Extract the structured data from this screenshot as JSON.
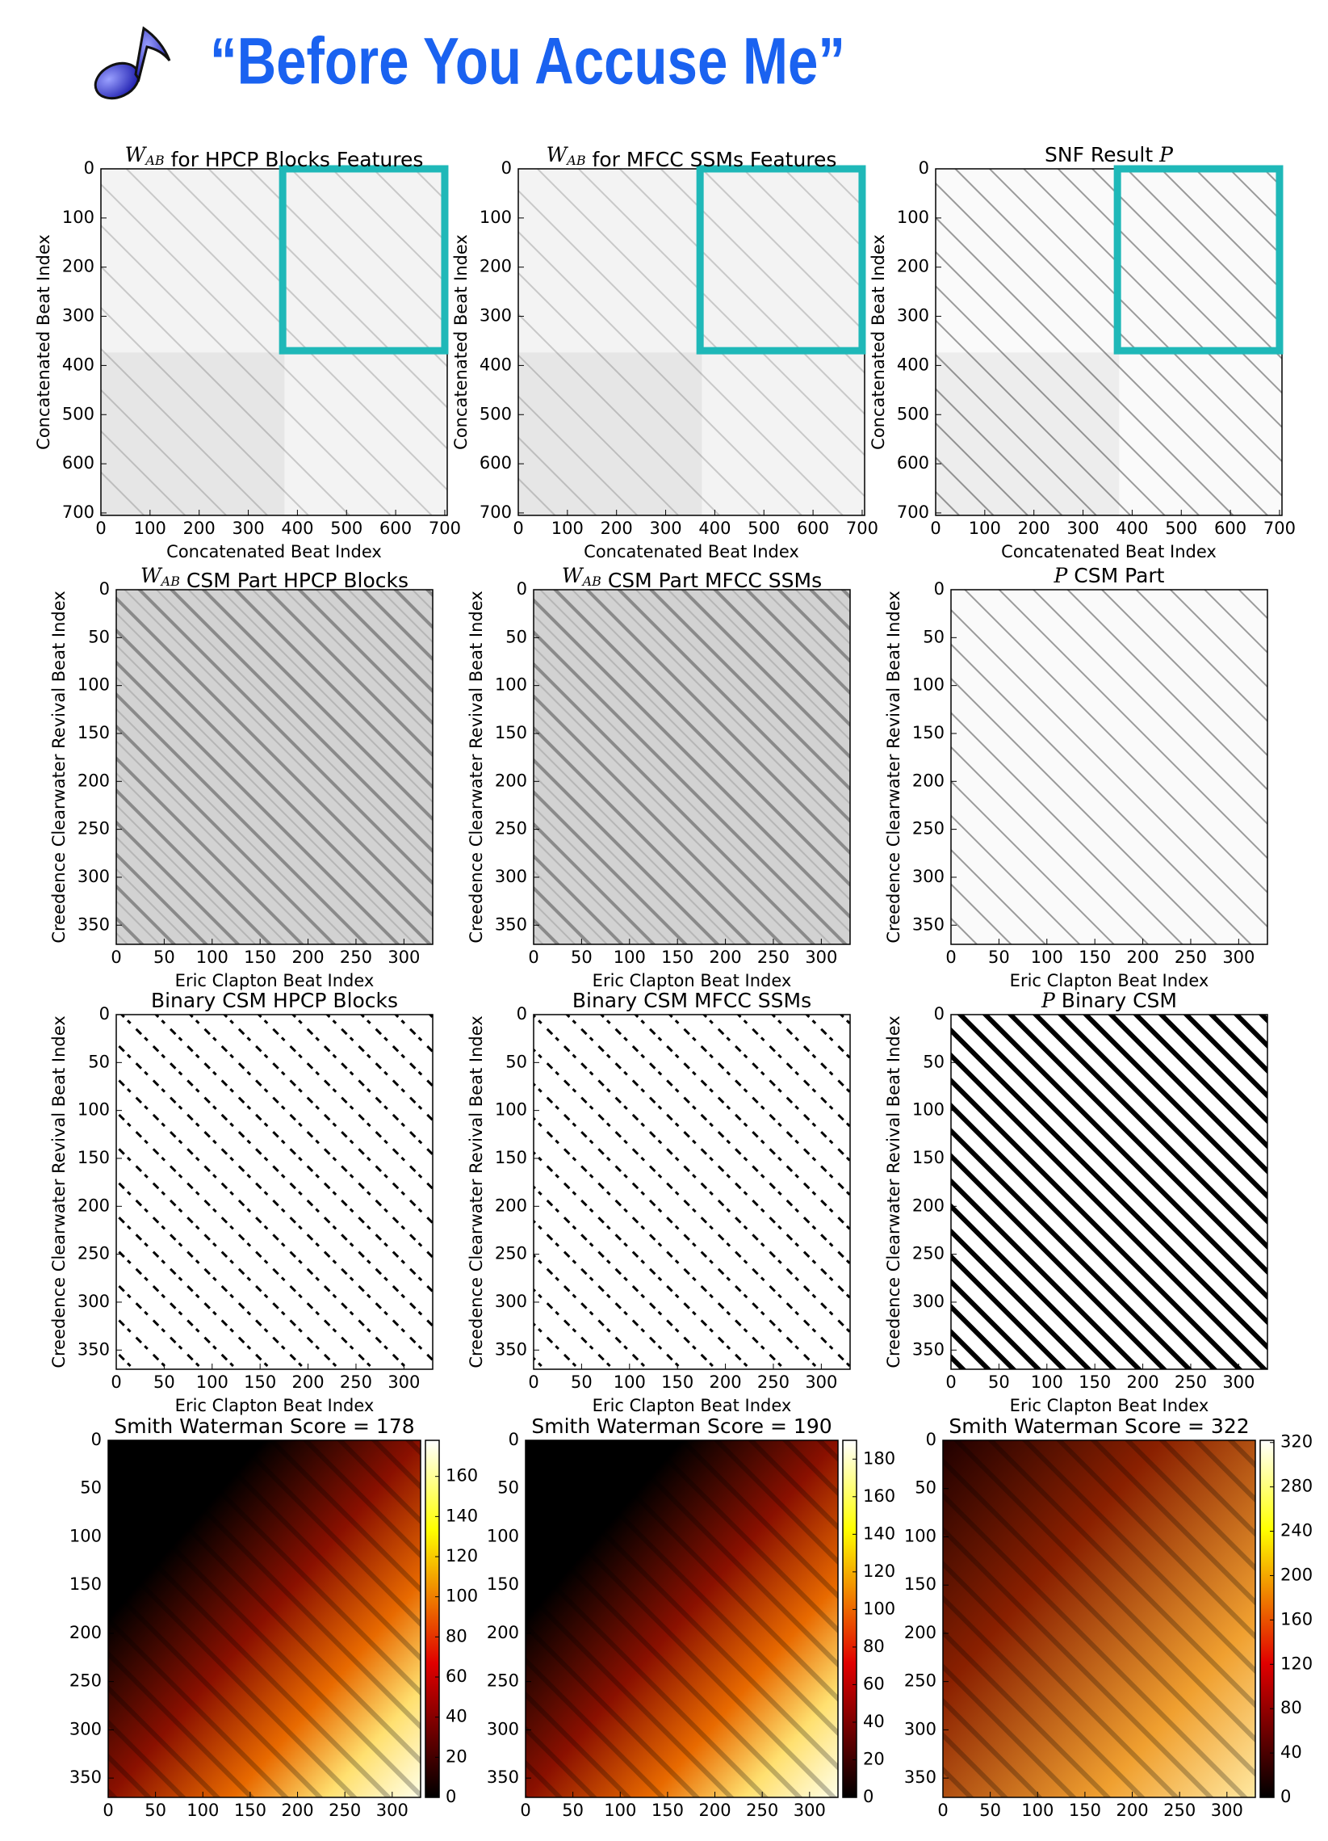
{
  "header": {
    "title": "“Before You Accuse Me”"
  },
  "chart_data": [
    {
      "type": "heatmap",
      "colormap": "gray",
      "title_parts": [
        {
          "text": "W",
          "math": true,
          "sub": "AB"
        },
        {
          "text": " for HPCP Blocks Features",
          "math": false
        }
      ],
      "xlabel": "Concatenated Beat Index",
      "ylabel": "Concatenated Beat Index",
      "xlim": [
        0,
        705
      ],
      "ylim": [
        0,
        705
      ],
      "invert_y": true,
      "xticks": [
        0,
        100,
        200,
        300,
        400,
        500,
        600,
        700
      ],
      "yticks": [
        0,
        100,
        200,
        300,
        400,
        500,
        600,
        700
      ],
      "highlight_box": {
        "x": [
          370,
          700
        ],
        "y": [
          0,
          370
        ],
        "color": "#1fb8b8"
      }
    },
    {
      "type": "heatmap",
      "colormap": "gray",
      "title_parts": [
        {
          "text": "W",
          "math": true,
          "sub": "AB"
        },
        {
          "text": " for MFCC SSMs Features",
          "math": false
        }
      ],
      "xlabel": "Concatenated Beat Index",
      "ylabel": "Concatenated Beat Index",
      "xlim": [
        0,
        705
      ],
      "ylim": [
        0,
        705
      ],
      "invert_y": true,
      "xticks": [
        0,
        100,
        200,
        300,
        400,
        500,
        600,
        700
      ],
      "yticks": [
        0,
        100,
        200,
        300,
        400,
        500,
        600,
        700
      ],
      "highlight_box": {
        "x": [
          370,
          700
        ],
        "y": [
          0,
          370
        ],
        "color": "#1fb8b8"
      }
    },
    {
      "type": "heatmap",
      "colormap": "gray",
      "title_parts": [
        {
          "text": "SNF Result ",
          "math": false
        },
        {
          "text": "P",
          "math": true
        }
      ],
      "xlabel": "Concatenated Beat Index",
      "ylabel": "Concatenated Beat Index",
      "xlim": [
        0,
        705
      ],
      "ylim": [
        0,
        705
      ],
      "invert_y": true,
      "xticks": [
        0,
        100,
        200,
        300,
        400,
        500,
        600,
        700
      ],
      "yticks": [
        0,
        100,
        200,
        300,
        400,
        500,
        600,
        700
      ],
      "highlight_box": {
        "x": [
          370,
          700
        ],
        "y": [
          0,
          370
        ],
        "color": "#1fb8b8"
      }
    },
    {
      "type": "heatmap",
      "colormap": "gray",
      "title_parts": [
        {
          "text": "W",
          "math": true,
          "sub": "AB"
        },
        {
          "text": " CSM Part HPCP Blocks",
          "math": false
        }
      ],
      "xlabel": "Eric Clapton Beat Index",
      "ylabel": "Creedence Clearwater Revival Beat Index",
      "xlim": [
        0,
        330
      ],
      "ylim": [
        0,
        370
      ],
      "invert_y": true,
      "xticks": [
        0,
        50,
        100,
        150,
        200,
        250,
        300
      ],
      "yticks": [
        0,
        50,
        100,
        150,
        200,
        250,
        300,
        350
      ]
    },
    {
      "type": "heatmap",
      "colormap": "gray",
      "title_parts": [
        {
          "text": "W",
          "math": true,
          "sub": "AB"
        },
        {
          "text": " CSM Part MFCC SSMs",
          "math": false
        }
      ],
      "xlabel": "Eric Clapton Beat Index",
      "ylabel": "Creedence Clearwater Revival Beat Index",
      "xlim": [
        0,
        330
      ],
      "ylim": [
        0,
        370
      ],
      "invert_y": true,
      "xticks": [
        0,
        50,
        100,
        150,
        200,
        250,
        300
      ],
      "yticks": [
        0,
        50,
        100,
        150,
        200,
        250,
        300,
        350
      ]
    },
    {
      "type": "heatmap",
      "colormap": "gray",
      "title_parts": [
        {
          "text": "P",
          "math": true
        },
        {
          "text": " CSM Part",
          "math": false
        }
      ],
      "xlabel": "Eric Clapton Beat Index",
      "ylabel": "Creedence Clearwater Revival Beat Index",
      "xlim": [
        0,
        330
      ],
      "ylim": [
        0,
        370
      ],
      "invert_y": true,
      "xticks": [
        0,
        50,
        100,
        150,
        200,
        250,
        300
      ],
      "yticks": [
        0,
        50,
        100,
        150,
        200,
        250,
        300,
        350
      ]
    },
    {
      "type": "heatmap",
      "colormap": "binary",
      "title_parts": [
        {
          "text": "Binary CSM HPCP Blocks",
          "math": false
        }
      ],
      "xlabel": "Eric Clapton Beat Index",
      "ylabel": "Creedence Clearwater Revival Beat Index",
      "xlim": [
        0,
        330
      ],
      "ylim": [
        0,
        370
      ],
      "invert_y": true,
      "xticks": [
        0,
        50,
        100,
        150,
        200,
        250,
        300
      ],
      "yticks": [
        0,
        50,
        100,
        150,
        200,
        250,
        300,
        350
      ]
    },
    {
      "type": "heatmap",
      "colormap": "binary",
      "title_parts": [
        {
          "text": "Binary CSM MFCC SSMs",
          "math": false
        }
      ],
      "xlabel": "Eric Clapton Beat Index",
      "ylabel": "Creedence Clearwater Revival Beat Index",
      "xlim": [
        0,
        330
      ],
      "ylim": [
        0,
        370
      ],
      "invert_y": true,
      "xticks": [
        0,
        50,
        100,
        150,
        200,
        250,
        300
      ],
      "yticks": [
        0,
        50,
        100,
        150,
        200,
        250,
        300,
        350
      ]
    },
    {
      "type": "heatmap",
      "colormap": "binary",
      "title_parts": [
        {
          "text": "P",
          "math": true
        },
        {
          "text": " Binary CSM",
          "math": false
        }
      ],
      "xlabel": "Eric Clapton Beat Index",
      "ylabel": "Creedence Clearwater Revival Beat Index",
      "xlim": [
        0,
        330
      ],
      "ylim": [
        0,
        370
      ],
      "invert_y": true,
      "xticks": [
        0,
        50,
        100,
        150,
        200,
        250,
        300
      ],
      "yticks": [
        0,
        50,
        100,
        150,
        200,
        250,
        300,
        350
      ]
    },
    {
      "type": "heatmap",
      "colormap": "hot",
      "title_parts": [
        {
          "text": "Smith Waterman Score = 178",
          "math": false
        }
      ],
      "xlim": [
        0,
        330
      ],
      "ylim": [
        0,
        370
      ],
      "invert_y": true,
      "xticks": [
        0,
        50,
        100,
        150,
        200,
        250,
        300
      ],
      "yticks": [
        0,
        50,
        100,
        150,
        200,
        250,
        300,
        350
      ],
      "clim": [
        0,
        178
      ],
      "cticks": [
        0,
        20,
        40,
        60,
        80,
        100,
        120,
        140,
        160
      ]
    },
    {
      "type": "heatmap",
      "colormap": "hot",
      "title_parts": [
        {
          "text": "Smith Waterman Score = 190",
          "math": false
        }
      ],
      "xlim": [
        0,
        330
      ],
      "ylim": [
        0,
        370
      ],
      "invert_y": true,
      "xticks": [
        0,
        50,
        100,
        150,
        200,
        250,
        300
      ],
      "yticks": [
        0,
        50,
        100,
        150,
        200,
        250,
        300,
        350
      ],
      "clim": [
        0,
        190
      ],
      "cticks": [
        0,
        20,
        40,
        60,
        80,
        100,
        120,
        140,
        160,
        180
      ]
    },
    {
      "type": "heatmap",
      "colormap": "hot",
      "title_parts": [
        {
          "text": "Smith Waterman Score = 322",
          "math": false
        }
      ],
      "xlim": [
        0,
        330
      ],
      "ylim": [
        0,
        370
      ],
      "invert_y": true,
      "xticks": [
        0,
        50,
        100,
        150,
        200,
        250,
        300
      ],
      "yticks": [
        0,
        50,
        100,
        150,
        200,
        250,
        300,
        350
      ],
      "clim": [
        0,
        322
      ],
      "cticks": [
        0,
        40,
        80,
        120,
        160,
        200,
        240,
        280,
        320
      ]
    }
  ]
}
